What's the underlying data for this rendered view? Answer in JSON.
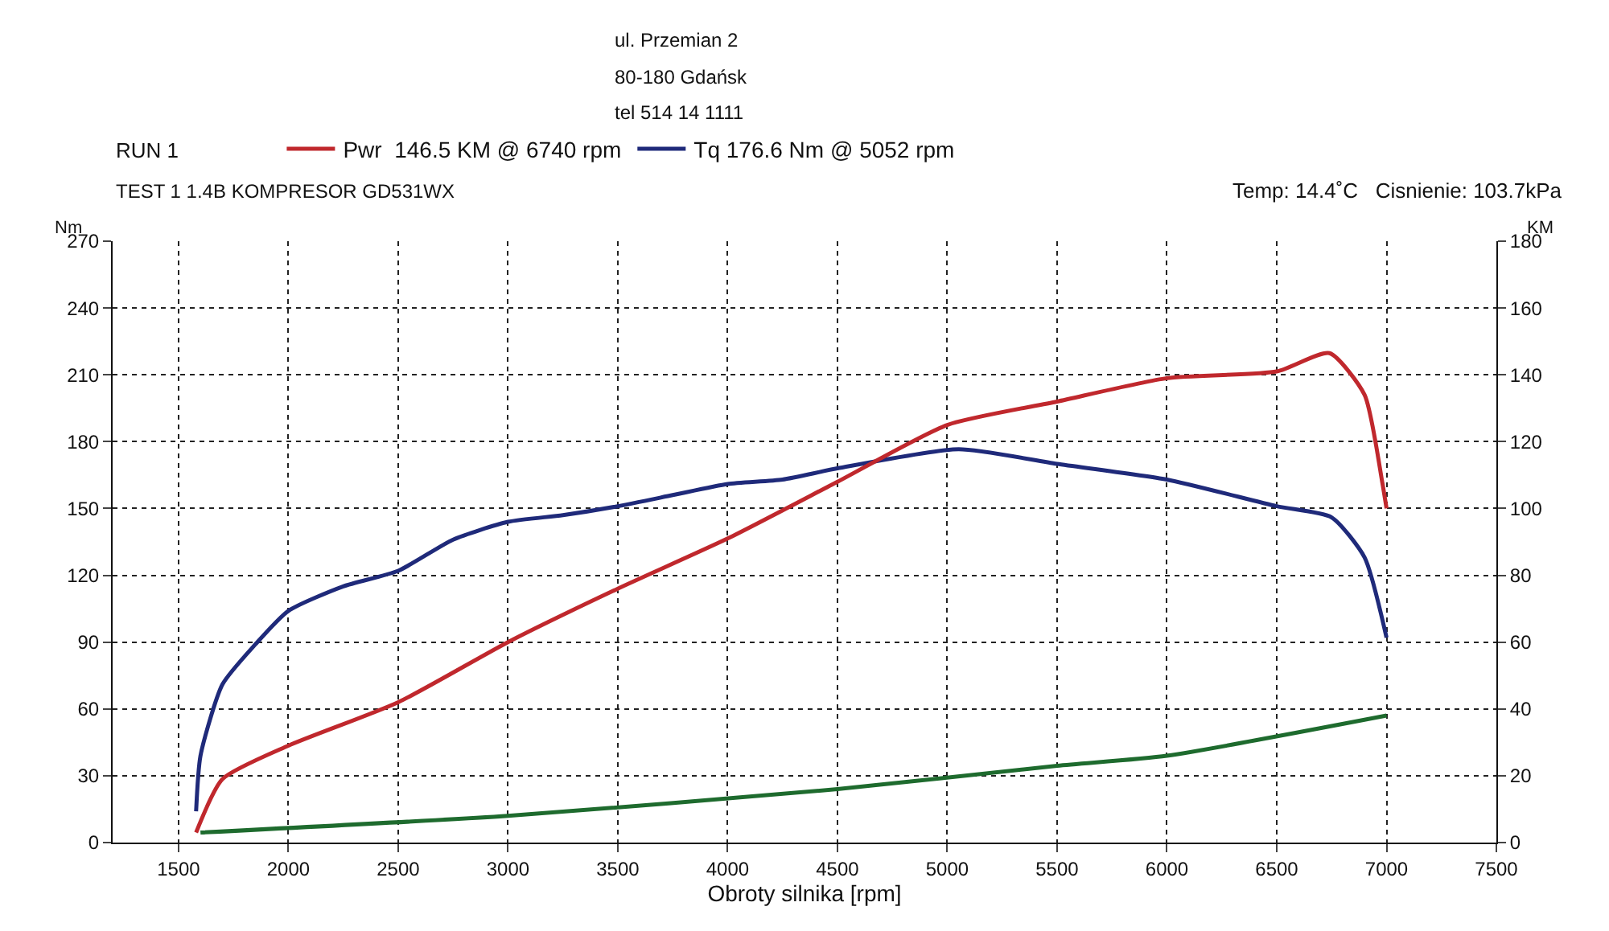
{
  "chart_data": {
    "type": "line",
    "xlabel": "Obroty silnika [rpm]",
    "ylabel": "Nm",
    "y2label": "KM",
    "xlim": [
      1200,
      7500
    ],
    "xticks": [
      1500,
      2000,
      2500,
      3000,
      3500,
      4000,
      4500,
      5000,
      5500,
      6000,
      6500,
      7000,
      7500
    ],
    "ylim": [
      0,
      270
    ],
    "yticks": [
      0,
      30,
      60,
      90,
      120,
      150,
      180,
      210,
      240,
      270
    ],
    "y2lim": [
      0,
      180
    ],
    "y2ticks": [
      0,
      20,
      40,
      60,
      80,
      100,
      120,
      140,
      160,
      180
    ],
    "grid": true,
    "line_style": "solid",
    "marker": "none",
    "legend": "top left",
    "series": [
      {
        "name": "Pwr  146.5 KM @ 6740 rpm",
        "color": "#c0282d",
        "axis": "y2",
        "x": [
          1580,
          1700,
          2000,
          2500,
          3000,
          3500,
          4000,
          4500,
          5000,
          5500,
          6000,
          6500,
          6740,
          6900,
          6980,
          7000
        ],
        "values": [
          3,
          19,
          29,
          42,
          60,
          76,
          91,
          108,
          125,
          132,
          139,
          141,
          146.5,
          134,
          108,
          100
        ]
      },
      {
        "name": "Tq 176.6 Nm @ 5052 rpm",
        "color": "#1f2a7a",
        "x": [
          1580,
          1600,
          1700,
          1850,
          2000,
          2250,
          2500,
          2750,
          3000,
          3250,
          3500,
          3750,
          4000,
          4250,
          4500,
          5052,
          5500,
          6000,
          6500,
          6750,
          6900,
          7000
        ],
        "values": [
          14,
          39,
          71,
          89,
          104,
          115,
          122,
          136,
          144,
          147,
          151,
          156,
          161,
          163,
          168,
          176.6,
          170,
          163,
          151,
          146,
          128,
          92
        ]
      },
      {
        "color": "#1e6b2e",
        "axis": "y2",
        "x": [
          1600,
          3000,
          4500,
          5500,
          6000,
          7000
        ],
        "values": [
          3,
          8,
          16,
          23,
          26,
          38
        ]
      }
    ],
    "annotations": [
      "RUN 1",
      "TEST 1 1.4B KOMPRESOR GD531WX",
      "Temp: 14.4˚C   Cisnienie: 103.7kPa",
      "ul. Przemian 2",
      "80-180 Gdańsk",
      "tel 514 14 1111"
    ]
  }
}
